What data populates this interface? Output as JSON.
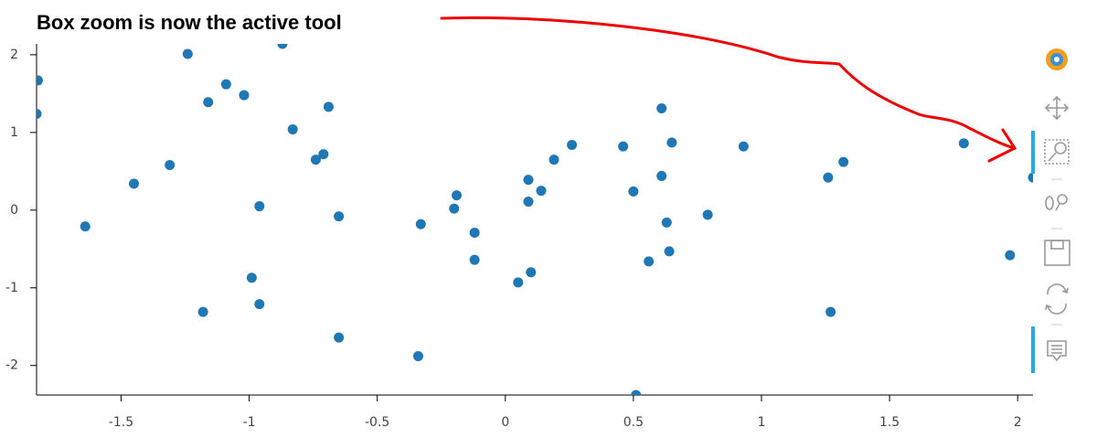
{
  "chart_data": {
    "type": "scatter",
    "title": "Box zoom is now the active tool",
    "color": "#1f77b4",
    "x": [
      -1.825,
      -1.83,
      -1.24,
      -0.87,
      -1.09,
      -1.02,
      -1.16,
      -0.69,
      -0.83,
      -0.71,
      -0.74,
      -1.31,
      -1.45,
      -1.64,
      -0.96,
      -0.65,
      -0.33,
      -0.19,
      -0.2,
      -0.12,
      -0.12,
      -0.99,
      -0.96,
      -1.18,
      -0.65,
      -0.34,
      0.09,
      0.09,
      0.14,
      0.19,
      0.26,
      0.05,
      0.1,
      0.46,
      0.5,
      0.56,
      0.51,
      0.61,
      0.61,
      0.65,
      0.63,
      0.64,
      0.79,
      0.93,
      1.26,
      1.32,
      1.27,
      1.79,
      1.97,
      2.06
    ],
    "values": [
      1.67,
      1.24,
      2.01,
      2.14,
      1.62,
      1.48,
      1.39,
      1.33,
      1.04,
      0.72,
      0.65,
      0.58,
      0.34,
      -0.21,
      0.05,
      -0.08,
      -0.18,
      0.19,
      0.02,
      -0.29,
      -0.64,
      -0.87,
      -1.21,
      -1.31,
      -1.64,
      -1.88,
      0.39,
      0.11,
      0.25,
      0.65,
      0.84,
      -0.93,
      -0.8,
      0.82,
      0.24,
      -0.66,
      -2.38,
      1.31,
      0.44,
      0.87,
      -0.16,
      -0.53,
      -0.06,
      0.82,
      0.42,
      0.62,
      -1.31,
      0.86,
      -0.58,
      0.42
    ],
    "xlim": [
      -1.83,
      2.06
    ],
    "ylim": [
      -2.38,
      2.14
    ],
    "xticks": [
      -1.5,
      -1,
      -0.5,
      0,
      0.5,
      1,
      1.5,
      2
    ],
    "yticks": [
      -2,
      -1,
      0,
      1,
      2
    ]
  }
}
